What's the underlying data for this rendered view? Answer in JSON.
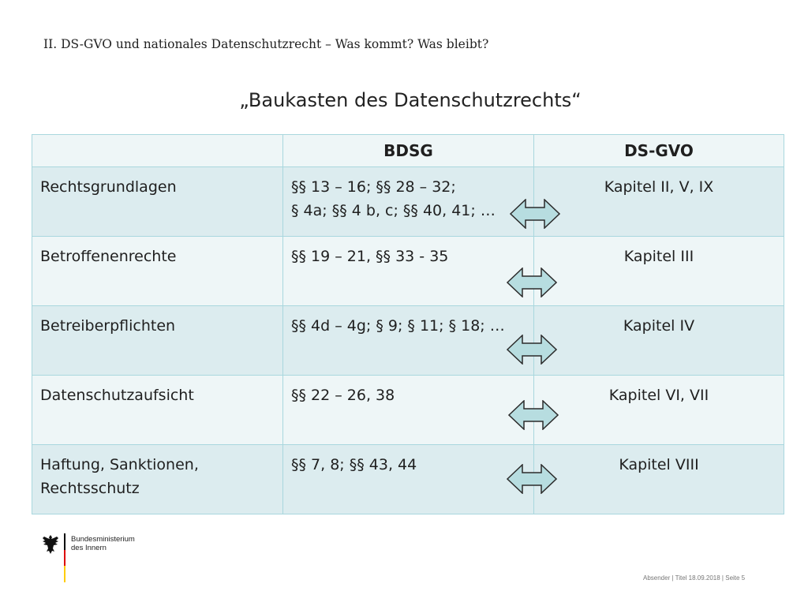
{
  "header": {
    "section_title": "II. DS-GVO und nationales Datenschutzrecht – Was kommt? Was bleibt?",
    "slide_title": "„Baukasten des Datenschutzrechts“"
  },
  "table": {
    "columns": [
      "",
      "BDSG",
      "DS-GVO"
    ],
    "rows": [
      {
        "topic": "Rechtsgrundlagen",
        "bdsg_line1": "§§ 13 – 16; §§ 28 – 32;",
        "bdsg_line2": "§ 4a; §§ 4 b, c; §§ 40, 41; …",
        "dsgvo": "Kapitel II, V, IX"
      },
      {
        "topic": "Betroffenenrechte",
        "bdsg_line1": "§§ 19 – 21, §§ 33 - 35",
        "bdsg_line2": "",
        "dsgvo": "Kapitel III"
      },
      {
        "topic": "Betreiberpflichten",
        "bdsg_line1": "§§ 4d – 4g; § 9; § 11; § 18; …",
        "bdsg_line2": "",
        "dsgvo": "Kapitel IV"
      },
      {
        "topic": "Datenschutzaufsicht",
        "bdsg_line1": "§§ 22 – 26, 38",
        "bdsg_line2": "",
        "dsgvo": "Kapitel VI, VII"
      },
      {
        "topic_line1": "Haftung, Sanktionen,",
        "topic_line2": "Rechtsschutz",
        "bdsg_line1": "§§ 7, 8; §§ 43, 44",
        "bdsg_line2": "",
        "dsgvo": "Kapitel VIII"
      }
    ]
  },
  "footer": {
    "ministry_line1": "Bundesministerium",
    "ministry_line2": "des Innern",
    "meta": "Absender | Titel   18.09.2018 | Seite 5"
  },
  "colors": {
    "grid_border": "#a9d7de",
    "row_dark": "#dcecef",
    "row_light": "#eef6f7",
    "arrow_fill": "#b7dde0",
    "flag_black": "#000000",
    "flag_red": "#dd0000",
    "flag_gold": "#ffcc00"
  },
  "icons": {
    "arrow": "double-headed-arrow-icon",
    "logo": "federal-eagle-icon"
  }
}
